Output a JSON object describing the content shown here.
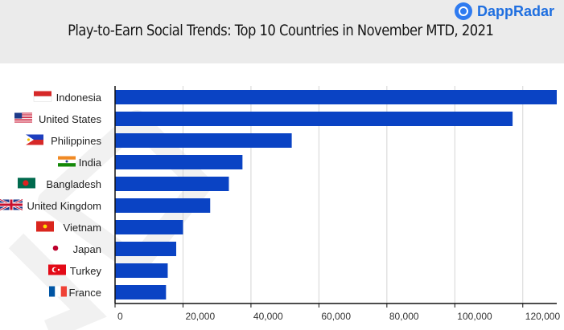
{
  "brand": {
    "name": "DappRadar"
  },
  "chart_data": {
    "type": "bar",
    "orientation": "horizontal",
    "title": "Play-to-Earn Social Trends: Top 10 Countries in November MTD, 2021",
    "categories": [
      "Indonesia",
      "United States",
      "Philippines",
      "India",
      "Bangladesh",
      "United Kingdom",
      "Vietnam",
      "Japan",
      "Turkey",
      "France"
    ],
    "values": [
      130000,
      117000,
      52000,
      37500,
      33500,
      28000,
      20000,
      18000,
      15500,
      15000
    ],
    "xlim": [
      0,
      130000
    ],
    "x_ticks": [
      0,
      20000,
      40000,
      60000,
      80000,
      100000,
      120000
    ],
    "x_tick_labels": [
      "0",
      "20,000",
      "40,000",
      "60,000",
      "80,000",
      "100,000",
      "120,000"
    ],
    "grid": true,
    "bar_color": "#0a43c4",
    "grid_color": "#d4d4d4",
    "flag_icons": [
      "flag-indonesia-icon",
      "flag-united-states-icon",
      "flag-philippines-icon",
      "flag-india-icon",
      "flag-bangladesh-icon",
      "flag-united-kingdom-icon",
      "flag-vietnam-icon",
      "flag-japan-icon",
      "flag-turkey-icon",
      "flag-france-icon"
    ]
  }
}
